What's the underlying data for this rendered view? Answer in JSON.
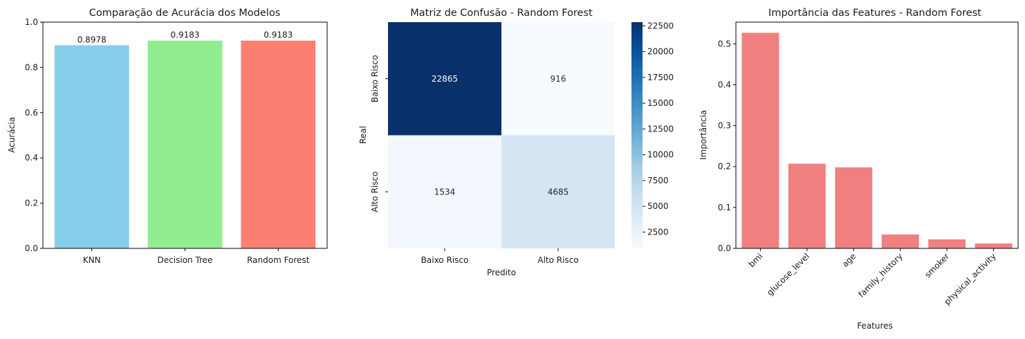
{
  "chart_data": [
    {
      "type": "bar",
      "title": "Comparação de Acurácia dos Modelos",
      "xlabel": "",
      "ylabel": "Acurácia",
      "categories": [
        "KNN",
        "Decision Tree",
        "Random Forest"
      ],
      "values": [
        0.8978,
        0.9183,
        0.9183
      ],
      "value_labels": [
        "0.8978",
        "0.9183",
        "0.9183"
      ],
      "colors": [
        "#87ceeb",
        "#90ee90",
        "#fa8072"
      ],
      "ylim": [
        0,
        1.0
      ],
      "yticks": [
        0.0,
        0.2,
        0.4,
        0.6,
        0.8,
        1.0
      ],
      "ytick_labels": [
        "0.0",
        "0.2",
        "0.4",
        "0.6",
        "0.8",
        "1.0"
      ],
      "grid": false
    },
    {
      "type": "heatmap",
      "title": "Matriz de Confusão - Random Forest",
      "xlabel": "Predito",
      "ylabel": "Real",
      "x_categories": [
        "Baixo Risco",
        "Alto Risco"
      ],
      "y_categories": [
        "Baixo Risco",
        "Alto Risco"
      ],
      "values": [
        [
          22865,
          916
        ],
        [
          1534,
          4685
        ]
      ],
      "cell_labels": [
        [
          "22865",
          "916"
        ],
        [
          "1534",
          "4685"
        ]
      ],
      "colormap": "Blues",
      "colorbar_range": [
        916,
        22865
      ],
      "colorbar_ticks": [
        2500,
        5000,
        7500,
        10000,
        12500,
        15000,
        17500,
        20000,
        22500
      ],
      "colorbar_tick_labels": [
        "2500",
        "5000",
        "7500",
        "10000",
        "12500",
        "15000",
        "17500",
        "20000",
        "22500"
      ]
    },
    {
      "type": "bar",
      "title": "Importância das Features - Random Forest",
      "xlabel": "Features",
      "ylabel": "Importância",
      "categories": [
        "bmi",
        "glucose_level",
        "age",
        "family_history",
        "smoker",
        "physical_activity"
      ],
      "values": [
        0.527,
        0.207,
        0.198,
        0.034,
        0.022,
        0.012
      ],
      "color": "#f08080",
      "ylim": [
        0,
        0.553
      ],
      "yticks": [
        0.0,
        0.1,
        0.2,
        0.3,
        0.4,
        0.5
      ],
      "ytick_labels": [
        "0.0",
        "0.1",
        "0.2",
        "0.3",
        "0.4",
        "0.5"
      ],
      "xtick_rotation": 45,
      "grid": false
    }
  ]
}
